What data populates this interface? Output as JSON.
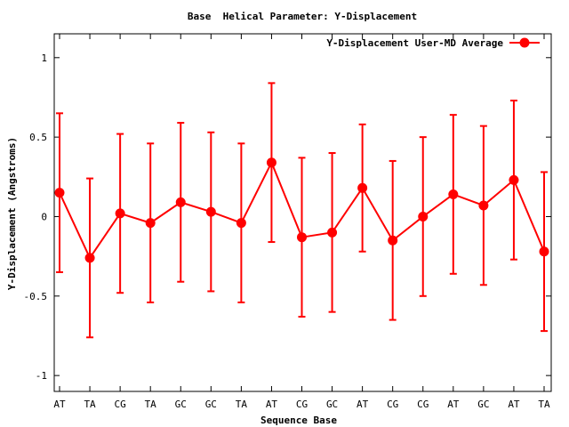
{
  "chart_data": {
    "type": "line",
    "title": "Base  Helical Parameter: Y-Displacement",
    "xlabel": "Sequence Base",
    "ylabel": "Y-Displacement (Angstroms)",
    "categories": [
      "AT",
      "TA",
      "CG",
      "TA",
      "GC",
      "GC",
      "TA",
      "AT",
      "CG",
      "GC",
      "AT",
      "CG",
      "CG",
      "AT",
      "GC",
      "AT",
      "TA"
    ],
    "ylim": [
      -1.1,
      1.15
    ],
    "yticks": [
      "1",
      "0.5",
      "0",
      "-0.5",
      "-1"
    ],
    "legend_position": "top-right",
    "grid": false,
    "color": "#ff0000",
    "series": [
      {
        "name": "Y-Displacement User-MD Average",
        "values": [
          0.15,
          -0.26,
          0.02,
          -0.04,
          0.09,
          0.03,
          -0.04,
          0.34,
          -0.13,
          -0.1,
          0.18,
          -0.15,
          0.0,
          0.14,
          0.07,
          0.23,
          -0.22
        ],
        "error": [
          0.5,
          0.5,
          0.5,
          0.5,
          0.5,
          0.5,
          0.5,
          0.5,
          0.5,
          0.5,
          0.4,
          0.5,
          0.5,
          0.5,
          0.5,
          0.5,
          0.5
        ]
      }
    ]
  }
}
